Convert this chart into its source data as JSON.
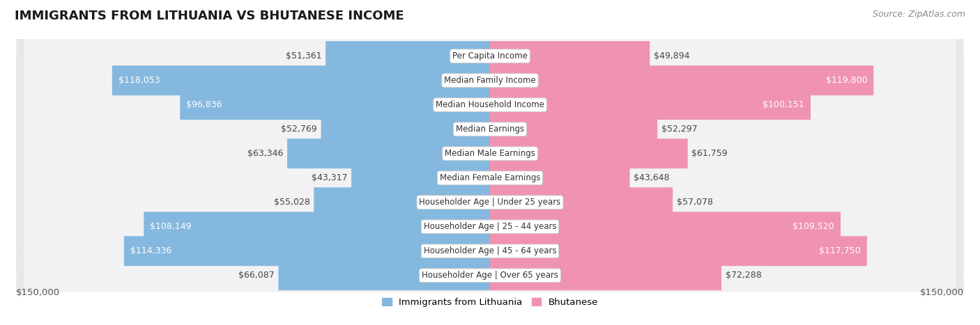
{
  "title": "IMMIGRANTS FROM LITHUANIA VS BHUTANESE INCOME",
  "source": "Source: ZipAtlas.com",
  "categories": [
    "Per Capita Income",
    "Median Family Income",
    "Median Household Income",
    "Median Earnings",
    "Median Male Earnings",
    "Median Female Earnings",
    "Householder Age | Under 25 years",
    "Householder Age | 25 - 44 years",
    "Householder Age | 45 - 64 years",
    "Householder Age | Over 65 years"
  ],
  "lithuania_values": [
    51361,
    118053,
    96836,
    52769,
    63346,
    43317,
    55028,
    108149,
    114336,
    66087
  ],
  "bhutanese_values": [
    49894,
    119800,
    100151,
    52297,
    61759,
    43648,
    57078,
    109520,
    117750,
    72288
  ],
  "max_val": 150000,
  "bar_color_lithuania": "#85b8de",
  "bar_color_bhutanese": "#f093b0",
  "bar_color_lithuania_dark": "#5a9cc5",
  "bar_color_bhutanese_dark": "#e8607a",
  "label_color_dark": "#444444",
  "label_color_white": "#ffffff",
  "row_bg_color": "#e8e8ea",
  "row_inner_color": "#f2f2f5",
  "threshold_white_label": 85000,
  "xlabel_left": "$150,000",
  "xlabel_right": "$150,000",
  "legend_lithuania": "Immigrants from Lithuania",
  "legend_bhutanese": "Bhutanese",
  "title_fontsize": 13,
  "source_fontsize": 9,
  "label_fontsize": 9,
  "cat_fontsize": 8.5
}
